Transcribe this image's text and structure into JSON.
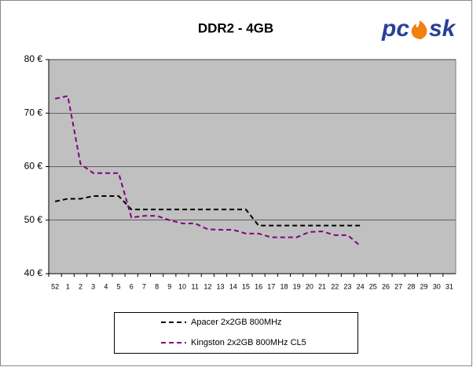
{
  "logo_left": "pc",
  "logo_right": "sk",
  "chart_data": {
    "type": "line",
    "title": "DDR2 - 4GB",
    "categories": [
      "52",
      "1",
      "2",
      "3",
      "4",
      "5",
      "6",
      "7",
      "8",
      "9",
      "10",
      "11",
      "12",
      "13",
      "14",
      "15",
      "16",
      "17",
      "18",
      "19",
      "20",
      "21",
      "22",
      "23",
      "24",
      "25",
      "26",
      "27",
      "28",
      "29",
      "30",
      "31"
    ],
    "ylim": [
      40,
      80
    ],
    "yticks": [
      {
        "value": 40,
        "label": "40 €"
      },
      {
        "value": 50,
        "label": "50 €"
      },
      {
        "value": 60,
        "label": "60 €"
      },
      {
        "value": 70,
        "label": "70 €"
      },
      {
        "value": 80,
        "label": "80 €"
      }
    ],
    "grid": true,
    "series": [
      {
        "name": "Apacer 2x2GB 800MHz",
        "color": "#000000",
        "values": [
          53.5,
          54,
          54,
          54.5,
          54.5,
          54.5,
          52,
          52,
          52,
          52,
          52,
          52,
          52,
          52,
          52,
          52,
          49,
          49,
          49,
          49,
          49,
          49,
          49,
          49,
          49,
          null,
          null,
          null,
          null,
          null,
          null,
          null
        ]
      },
      {
        "name": "Kingston 2x2GB 800MHz CL5",
        "color": "#800080",
        "values": [
          72.7,
          73.2,
          60.5,
          58.8,
          58.8,
          58.8,
          50.5,
          50.8,
          50.8,
          50,
          49.4,
          49.4,
          48.3,
          48.2,
          48.2,
          47.5,
          47.5,
          46.8,
          46.8,
          46.8,
          47.8,
          47.9,
          47.2,
          47.2,
          45.2,
          null,
          null,
          null,
          null,
          null,
          null,
          null
        ]
      }
    ]
  }
}
